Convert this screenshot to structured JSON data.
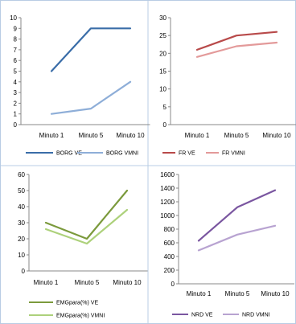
{
  "chart_data": [
    {
      "type": "line",
      "categories": [
        "Minuto 1",
        "Minuto 5",
        "Minuto 10"
      ],
      "ylim": [
        0,
        10
      ],
      "yticks": [
        0,
        1,
        2,
        3,
        4,
        5,
        6,
        7,
        8,
        9,
        10
      ],
      "legend_position": "bottom",
      "series": [
        {
          "name": "BORG VE",
          "values": [
            5,
            9,
            9
          ],
          "color": "#3a6da8"
        },
        {
          "name": "BORG VMNI",
          "values": [
            1,
            1.5,
            4
          ],
          "color": "#8eaed8"
        }
      ]
    },
    {
      "type": "line",
      "categories": [
        "Minuto 1",
        "Minuto 5",
        "Minuto 10"
      ],
      "ylim": [
        0,
        30
      ],
      "yticks": [
        0,
        5,
        10,
        15,
        20,
        25,
        30
      ],
      "legend_position": "bottom",
      "series": [
        {
          "name": "FR VE",
          "values": [
            21,
            25,
            26
          ],
          "color": "#b84a4a"
        },
        {
          "name": "FR VMNI",
          "values": [
            19,
            22,
            23
          ],
          "color": "#e39a9a"
        }
      ]
    },
    {
      "type": "line",
      "categories": [
        "Minuto 1",
        "Minuto 5",
        "Minuto 10"
      ],
      "ylim": [
        0,
        60
      ],
      "yticks": [
        0,
        10,
        20,
        30,
        40,
        50,
        60
      ],
      "legend_position": "bottom",
      "series": [
        {
          "name": "EMGpara(%) VE",
          "values": [
            30,
            20,
            50
          ],
          "color": "#7b9a3c"
        },
        {
          "name": "EMGpara(%) VMNI",
          "values": [
            26,
            17,
            38
          ],
          "color": "#add17b"
        }
      ]
    },
    {
      "type": "line",
      "categories": [
        "Minuto 1",
        "Minuto 5",
        "Minuto 10"
      ],
      "ylim": [
        0,
        1600
      ],
      "yticks": [
        0,
        200,
        400,
        600,
        800,
        1000,
        1200,
        1400,
        1600
      ],
      "legend_position": "bottom",
      "series": [
        {
          "name": "NRD VE",
          "values": [
            630,
            1120,
            1370
          ],
          "color": "#7a56a0"
        },
        {
          "name": "NRD VMNI",
          "values": [
            490,
            720,
            850
          ],
          "color": "#b8a3d1"
        }
      ]
    }
  ]
}
